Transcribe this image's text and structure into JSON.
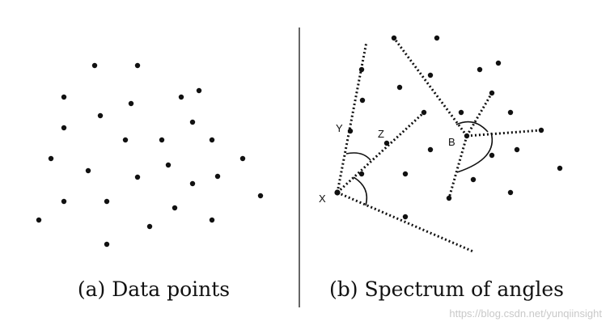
{
  "captions": {
    "left": "(a) Data points",
    "right": "(b) Spectrum of angles"
  },
  "point_labels": {
    "x": "X",
    "y": "Y",
    "z": "Z",
    "b": "B"
  },
  "watermark": "https://blog.csdn.net/yunqiinsight"
}
